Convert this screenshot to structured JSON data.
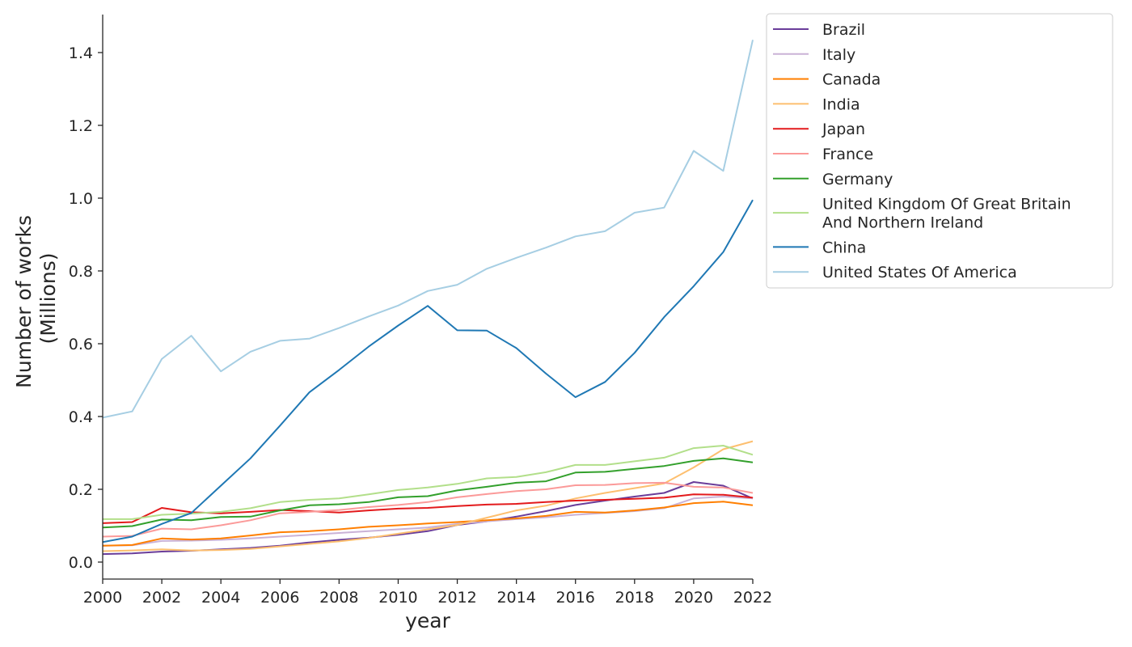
{
  "chart_data": {
    "type": "line",
    "title": "",
    "xlabel": "year",
    "ylabel": [
      "Number of works",
      "(Millions)"
    ],
    "xlim": [
      2000,
      2022
    ],
    "ylim": [
      -0.05,
      1.5
    ],
    "x_ticks": [
      2000,
      2002,
      2004,
      2006,
      2008,
      2010,
      2012,
      2014,
      2016,
      2018,
      2020,
      2022
    ],
    "x_tick_labels": [
      "2000",
      "2002",
      "2004",
      "2006",
      "2008",
      "2010",
      "2012",
      "2014",
      "2016",
      "2018",
      "2020",
      "2022"
    ],
    "y_ticks": [
      0.0,
      0.2,
      0.4,
      0.6,
      0.8,
      1.0,
      1.2,
      1.4
    ],
    "y_tick_labels": [
      "0.0",
      "0.2",
      "0.4",
      "0.6",
      "0.8",
      "1.0",
      "1.2",
      "1.4"
    ],
    "grid": false,
    "legend_position": "outside-top-right",
    "x": [
      2000,
      2001,
      2002,
      2003,
      2004,
      2005,
      2006,
      2007,
      2008,
      2009,
      2010,
      2011,
      2012,
      2013,
      2014,
      2015,
      2016,
      2017,
      2018,
      2019,
      2020,
      2021,
      2022
    ],
    "series": [
      {
        "name": "Brazil",
        "color": "#6a3d9a",
        "label_lines": [
          "Brazil"
        ],
        "values": [
          0.022,
          0.024,
          0.029,
          0.031,
          0.035,
          0.039,
          0.045,
          0.054,
          0.061,
          0.067,
          0.075,
          0.085,
          0.102,
          0.112,
          0.125,
          0.14,
          0.157,
          0.169,
          0.18,
          0.19,
          0.22,
          0.21,
          0.175
        ]
      },
      {
        "name": "Italy",
        "color": "#cab2d6",
        "label_lines": [
          "Italy"
        ],
        "values": [
          0.045,
          0.046,
          0.058,
          0.059,
          0.061,
          0.065,
          0.07,
          0.075,
          0.08,
          0.085,
          0.09,
          0.095,
          0.105,
          0.112,
          0.118,
          0.123,
          0.13,
          0.135,
          0.14,
          0.148,
          0.175,
          0.18,
          0.175
        ]
      },
      {
        "name": "Canada",
        "color": "#ff7f00",
        "label_lines": [
          "Canada"
        ],
        "values": [
          0.045,
          0.047,
          0.065,
          0.062,
          0.065,
          0.073,
          0.082,
          0.085,
          0.09,
          0.097,
          0.101,
          0.106,
          0.11,
          0.115,
          0.12,
          0.127,
          0.138,
          0.136,
          0.142,
          0.15,
          0.162,
          0.166,
          0.156
        ]
      },
      {
        "name": "India",
        "color": "#fdbf6f",
        "label_lines": [
          "India"
        ],
        "values": [
          0.03,
          0.032,
          0.035,
          0.032,
          0.033,
          0.036,
          0.043,
          0.05,
          0.057,
          0.066,
          0.078,
          0.09,
          0.102,
          0.122,
          0.142,
          0.155,
          0.175,
          0.19,
          0.203,
          0.216,
          0.26,
          0.31,
          0.332
        ]
      },
      {
        "name": "Japan",
        "color": "#e31a1c",
        "label_lines": [
          "Japan"
        ],
        "values": [
          0.107,
          0.11,
          0.149,
          0.137,
          0.134,
          0.138,
          0.143,
          0.14,
          0.136,
          0.142,
          0.147,
          0.149,
          0.154,
          0.158,
          0.16,
          0.165,
          0.169,
          0.171,
          0.174,
          0.177,
          0.186,
          0.185,
          0.177
        ]
      },
      {
        "name": "France",
        "color": "#fb9a99",
        "label_lines": [
          "France"
        ],
        "values": [
          0.07,
          0.072,
          0.092,
          0.09,
          0.101,
          0.115,
          0.134,
          0.138,
          0.143,
          0.151,
          0.157,
          0.165,
          0.178,
          0.187,
          0.195,
          0.2,
          0.211,
          0.212,
          0.217,
          0.218,
          0.207,
          0.205,
          0.19
        ]
      },
      {
        "name": "Germany",
        "color": "#33a02c",
        "label_lines": [
          "Germany"
        ],
        "values": [
          0.095,
          0.099,
          0.117,
          0.115,
          0.124,
          0.125,
          0.142,
          0.156,
          0.159,
          0.165,
          0.178,
          0.181,
          0.197,
          0.207,
          0.218,
          0.222,
          0.246,
          0.248,
          0.256,
          0.264,
          0.278,
          0.285,
          0.274
        ]
      },
      {
        "name": "United Kingdom Of Great Britain And Northern Ireland",
        "color": "#b2df8a",
        "label_lines": [
          "United Kingdom Of Great Britain",
          "And Northern Ireland"
        ],
        "values": [
          0.118,
          0.118,
          0.13,
          0.133,
          0.138,
          0.148,
          0.165,
          0.171,
          0.175,
          0.186,
          0.198,
          0.205,
          0.215,
          0.23,
          0.234,
          0.247,
          0.267,
          0.267,
          0.277,
          0.287,
          0.313,
          0.32,
          0.295
        ]
      },
      {
        "name": "China",
        "color": "#1f78b4",
        "label_lines": [
          "China"
        ],
        "values": [
          0.055,
          0.07,
          0.105,
          0.135,
          0.21,
          0.285,
          0.375,
          0.467,
          0.528,
          0.592,
          0.65,
          0.704,
          0.637,
          0.636,
          0.588,
          0.518,
          0.453,
          0.495,
          0.575,
          0.673,
          0.758,
          0.852,
          0.995
        ]
      },
      {
        "name": "United States Of America",
        "color": "#a6cee3",
        "label_lines": [
          "United States Of America"
        ],
        "values": [
          0.397,
          0.414,
          0.558,
          0.622,
          0.524,
          0.578,
          0.608,
          0.614,
          0.643,
          0.675,
          0.705,
          0.745,
          0.762,
          0.806,
          0.836,
          0.864,
          0.895,
          0.909,
          0.96,
          0.974,
          1.13,
          1.075,
          1.435
        ]
      }
    ]
  }
}
